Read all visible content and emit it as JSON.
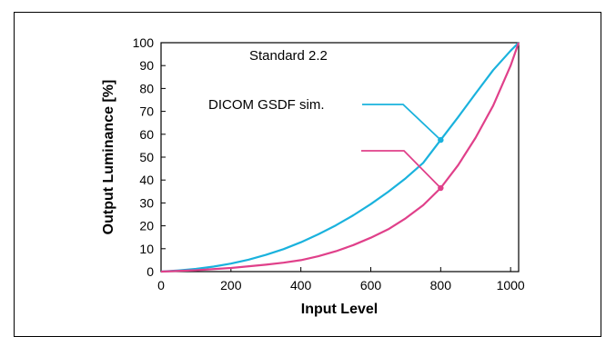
{
  "chart_data": {
    "type": "line",
    "xlabel": "Input Level",
    "ylabel": "Output Luminance [%]",
    "xlim": [
      0,
      1023
    ],
    "ylim": [
      0,
      100
    ],
    "xticks": [
      "0",
      "200",
      "400",
      "600",
      "800",
      "1000"
    ],
    "yticks": [
      "0",
      "10",
      "20",
      "30",
      "40",
      "50",
      "60",
      "70",
      "80",
      "90",
      "100"
    ],
    "grid": false,
    "colors": {
      "dicom": "#1ab2dd",
      "standard": "#e0408a"
    },
    "annotations": {
      "standard_label": "Standard 2.2",
      "dicom_label": "DICOM GSDF sim."
    },
    "series": [
      {
        "x": [
          0,
          50,
          100,
          150,
          200,
          250,
          300,
          350,
          400,
          450,
          500,
          550,
          600,
          650,
          700,
          750,
          800,
          850,
          900,
          950,
          1000,
          1023
        ],
        "values": [
          0,
          0.3,
          1.0,
          2.0,
          3.3,
          5.0,
          7.1,
          9.7,
          12.8,
          16.4,
          20.5,
          25.0,
          30.0,
          35.5,
          41.5,
          48.1,
          57.5,
          67.5,
          77.5,
          87.5,
          96.0,
          100
        ]
      },
      {
        "x": [
          0,
          100,
          200,
          300,
          400,
          450,
          500,
          550,
          600,
          650,
          700,
          750,
          800,
          850,
          900,
          950,
          1000,
          1023
        ],
        "values": [
          0,
          0.6,
          2.8,
          6.7,
          13.0,
          16.6,
          20.6,
          25.1,
          30.0,
          35.4,
          41.3,
          48.2,
          57.5,
          66.1,
          75.5,
          85.6,
          96.4,
          100
        ]
      },
      {
        "x": [
          0,
          100,
          200,
          300,
          400,
          500,
          600,
          700,
          750,
          800,
          850,
          900,
          950,
          1000,
          1023
        ],
        "values": [
          0,
          0.6,
          2.9,
          7.1,
          13.4,
          21.8,
          32.6,
          45.6,
          53.2,
          61.3,
          70.0,
          79.4,
          89.4,
          100,
          104.8
        ]
      }
    ],
    "curves": [
      {
        "id": "dicom",
        "x": [
          0,
          50,
          100,
          150,
          200,
          250,
          300,
          350,
          400,
          450,
          500,
          550,
          600,
          650,
          700,
          750,
          800,
          850,
          900,
          950,
          1000,
          1023
        ],
        "y": [
          0,
          0.5,
          1.2,
          2.2,
          3.5,
          5.2,
          7.3,
          9.8,
          12.8,
          16.3,
          20.2,
          24.6,
          29.5,
          34.9,
          40.8,
          47.5,
          57.5,
          67.5,
          77.8,
          88.0,
          96.5,
          100
        ]
      },
      {
        "id": "standard",
        "x": [
          0,
          100,
          200,
          300,
          350,
          400,
          450,
          500,
          550,
          600,
          650,
          700,
          750,
          800,
          850,
          900,
          950,
          1000,
          1023
        ],
        "y": [
          0,
          0.6,
          1.6,
          3.0,
          3.9,
          5.0,
          6.7,
          8.9,
          11.6,
          14.8,
          18.5,
          23.3,
          29.0,
          36.5,
          46.5,
          58.5,
          72.5,
          90.0,
          100
        ]
      }
    ],
    "markers": [
      {
        "curve": "dicom",
        "x": 800,
        "y": 57.5
      },
      {
        "curve": "standard",
        "x": 800,
        "y": 36.5
      }
    ]
  }
}
